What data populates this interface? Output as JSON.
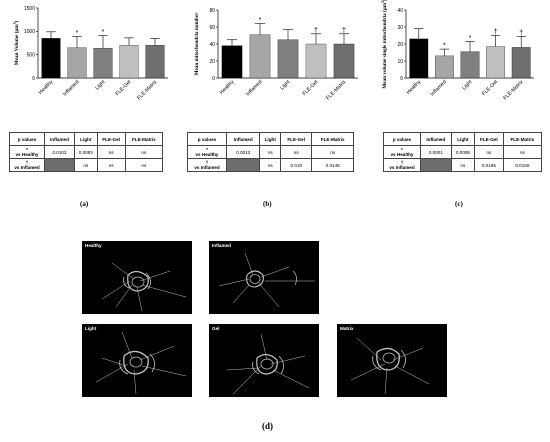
{
  "chart_data": [
    {
      "type": "bar",
      "panel": "(a)",
      "title": "",
      "xlabel": "",
      "ylabel": "Mean Volume (µm³)",
      "ylabel_text": "Mean Volume (µm",
      "ylabel_sup": "3",
      "ylabel_close": ")",
      "ylim": [
        0,
        1500
      ],
      "yticks": [
        "0",
        "500",
        "1000",
        "1500"
      ],
      "categories": [
        "Healthy",
        "Inflamed",
        "Light",
        "FLE-Gel",
        "FLE-Matrix"
      ],
      "values": [
        850,
        650,
        640,
        700,
        700
      ],
      "errors": [
        140,
        240,
        270,
        160,
        150
      ],
      "markers": [
        "",
        "*",
        "*",
        "",
        ""
      ],
      "colors": [
        "#000000",
        "#a6a6a6",
        "#7f7f7f",
        "#bfbfbf",
        "#6e6e6e"
      ]
    },
    {
      "type": "bar",
      "panel": "(b)",
      "title": "",
      "xlabel": "",
      "ylabel": "Mean mitochondria number",
      "ylim": [
        0,
        80
      ],
      "yticks": [
        "0",
        "20",
        "40",
        "60",
        "80"
      ],
      "categories": [
        "Healthy",
        "Inflamed",
        "Light",
        "FLE-Gel",
        "FLE-Matrix"
      ],
      "values": [
        38,
        51,
        45,
        40,
        40
      ],
      "errors": [
        7,
        13,
        12,
        12,
        12
      ],
      "markers": [
        "",
        "*",
        "",
        "†",
        "†"
      ],
      "colors": [
        "#000000",
        "#a6a6a6",
        "#7f7f7f",
        "#bfbfbf",
        "#6e6e6e"
      ]
    },
    {
      "type": "bar",
      "panel": "(c)",
      "title": "",
      "xlabel": "",
      "ylabel": "Mean volume single mitochondria (µm³)",
      "ylabel_text": "Mean volume single mitochondria (µm",
      "ylabel_sup": "3",
      "ylabel_close": ")",
      "ylim": [
        0,
        40
      ],
      "yticks": [
        "0",
        "10",
        "20",
        "30",
        "40"
      ],
      "categories": [
        "Healthy",
        "Inflamed",
        "Light",
        "FLE-Gel",
        "FLE-Matrix"
      ],
      "values": [
        23,
        13,
        15.5,
        18.5,
        18
      ],
      "errors": [
        6,
        4,
        6,
        6.5,
        6.5
      ],
      "markers": [
        "",
        "*",
        "*",
        "†",
        "†"
      ],
      "colors": [
        "#000000",
        "#a6a6a6",
        "#7f7f7f",
        "#bfbfbf",
        "#6e6e6e"
      ]
    }
  ],
  "tables": [
    {
      "headers": [
        "p values",
        "Inflamed",
        "Light",
        "FLE-Gel",
        "FLE-Matrix"
      ],
      "row1": {
        "sym": "*",
        "label": "vs Healthy",
        "cells": [
          "0.0103",
          "0.0093",
          "ns",
          "ns"
        ]
      },
      "row2": {
        "sym": "†",
        "label": "vs Inflamed",
        "cells": [
          "",
          "ns",
          "ns",
          "ns"
        ]
      }
    },
    {
      "headers": [
        "p values",
        "Inflamed",
        "Light",
        "FLE-Gel",
        "FLE-Matrix"
      ],
      "row1": {
        "sym": "*",
        "label": "vs Healthy",
        "cells": [
          "0.0013",
          "ns",
          "ns",
          "ns"
        ]
      },
      "row2": {
        "sym": "†",
        "label": "vs Inflamed",
        "cells": [
          "",
          "ns",
          "0.019",
          "0.0148"
        ]
      }
    },
    {
      "headers": [
        "p values",
        "Inflamed",
        "Light",
        "FLE-Gel",
        "FLE-Matrix"
      ],
      "row1": {
        "sym": "*",
        "label": "vs Healthy",
        "cells": [
          "0.0001",
          "0.0008",
          "ns",
          "ns"
        ]
      },
      "row2": {
        "sym": "†",
        "label": "vs Inflamed",
        "cells": [
          "",
          "ns",
          "0.0185",
          "0.0156"
        ]
      }
    }
  ],
  "panel_labels": {
    "a": "(a)",
    "b": "(b)",
    "c": "(c)",
    "d": "(d)"
  },
  "micrographs": [
    "Healthy",
    "Inflamed",
    "Light",
    "Gel",
    "Matrix"
  ]
}
